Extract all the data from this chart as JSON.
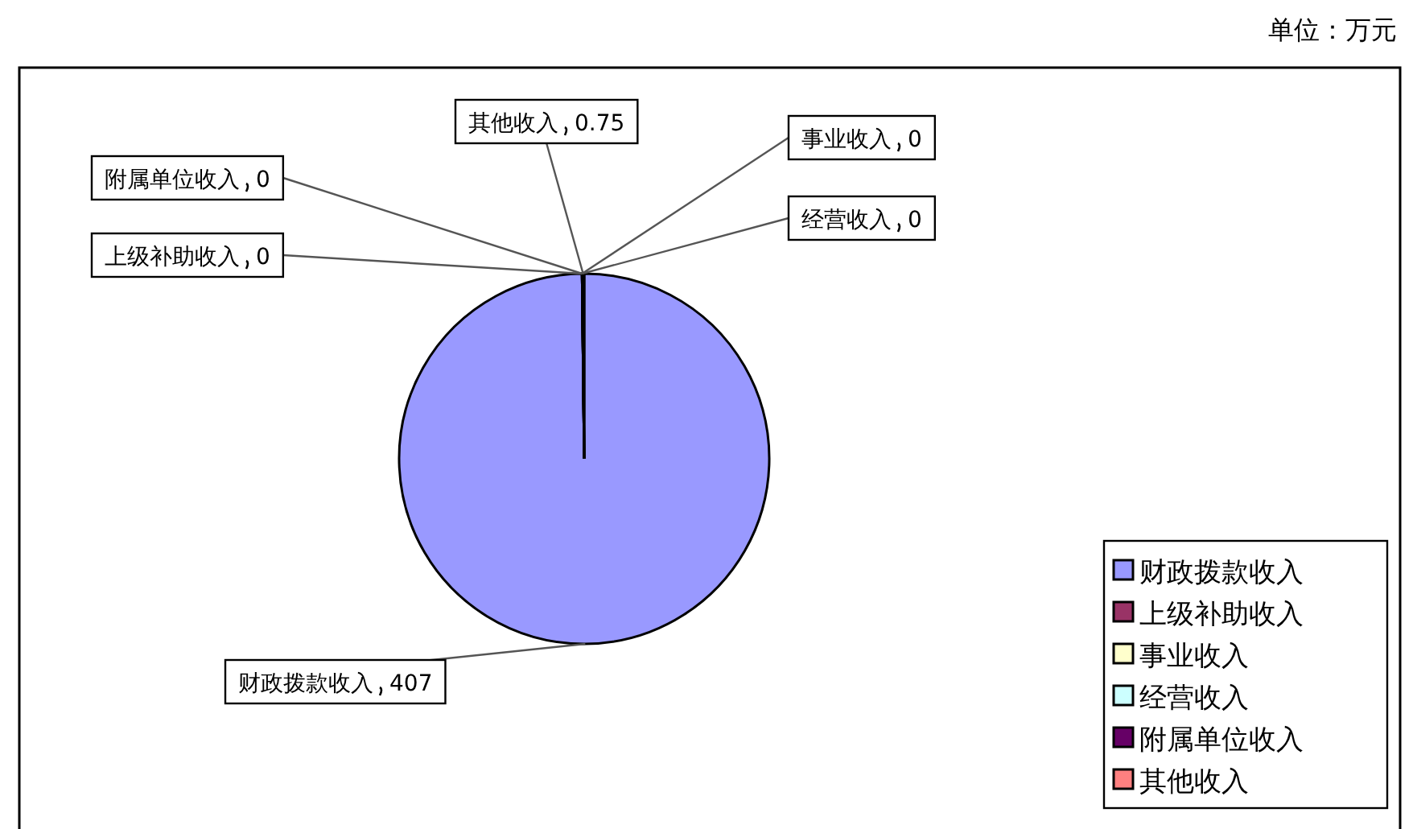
{
  "chart_data": {
    "type": "pie",
    "categories": [
      "财政拨款收入",
      "上级补助收入",
      "事业收入",
      "经营收入",
      "附属单位收入",
      "其他收入"
    ],
    "values": [
      407,
      0,
      0,
      0,
      0,
      0.75
    ],
    "colors": [
      "#9999ff",
      "#993366",
      "#ffffcc",
      "#ccffff",
      "#660066",
      "#ff8080"
    ],
    "value_labels": [
      "407",
      "0",
      "0",
      "0",
      "0",
      "0.75"
    ],
    "legend": "bottom right",
    "annotations": [
      "单位：万元"
    ]
  }
}
